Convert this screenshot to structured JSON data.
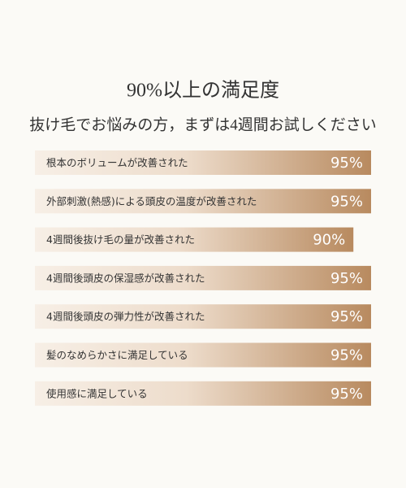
{
  "chart_data": {
    "type": "bar",
    "orientation": "horizontal",
    "title": "90%以上の満足度",
    "subtitle": "抜け毛でお悩みの方，まずは4週間お試しください",
    "categories": [
      "根本のボリュームが改善された",
      "外部刺激(熱感)による頭皮の温度が改善された",
      "4週間後抜け毛の量が改善された",
      "4週間後頭皮の保湿感が改善された",
      "4週間後頭皮の弾力性が改善された",
      "髪のなめらかさに満足している",
      "使用感に満足している"
    ],
    "values": [
      95,
      95,
      90,
      95,
      95,
      95,
      95
    ],
    "value_labels": [
      "95%",
      "95%",
      "90%",
      "95%",
      "95%",
      "95%",
      "95%"
    ],
    "color": "#b88a5f"
  }
}
